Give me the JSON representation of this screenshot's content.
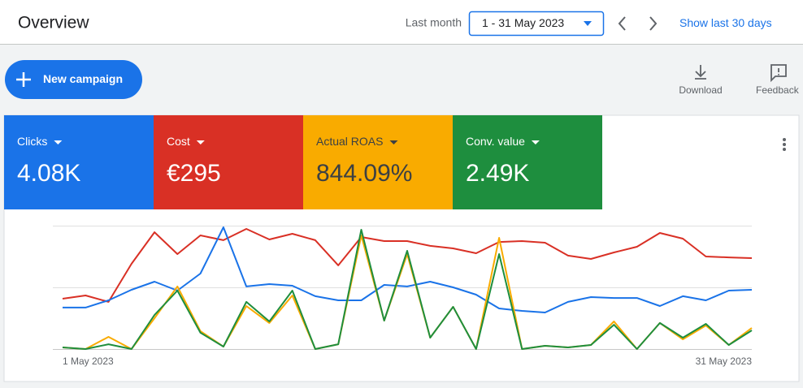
{
  "header": {
    "title": "Overview",
    "period_label": "Last month",
    "date_range": "1 - 31 May 2023",
    "show_last": "Show last 30 days"
  },
  "toolbar": {
    "new_campaign": "New campaign",
    "download": "Download",
    "feedback": "Feedback"
  },
  "chart_data": {
    "type": "line",
    "x": [
      "1 May 2023",
      null,
      null,
      null,
      null,
      null,
      null,
      null,
      null,
      null,
      null,
      null,
      null,
      null,
      null,
      null,
      null,
      null,
      null,
      null,
      null,
      null,
      null,
      null,
      null,
      null,
      null,
      null,
      null,
      null,
      "31 May 2023"
    ],
    "ylim": [
      0,
      100
    ],
    "series": [
      {
        "name": "Clicks",
        "total": "4.08K",
        "color": "#1a73e8",
        "text_color": "#ffffff",
        "values": [
          33.6,
          33.6,
          39.5,
          48.0,
          54.6,
          47.4,
          61.2,
          98.7,
          50.7,
          52.6,
          51.3,
          42.8,
          39.5,
          39.5,
          52.0,
          50.7,
          54.6,
          50.0,
          44.1,
          32.9,
          30.9,
          29.6,
          38.2,
          42.1,
          41.4,
          41.4,
          34.9,
          42.8,
          39.5,
          47.4,
          48.0
        ]
      },
      {
        "name": "Cost",
        "total": "€295",
        "color": "#d93025",
        "text_color": "#ffffff",
        "values": [
          40.8,
          43.4,
          38.2,
          69.1,
          94.7,
          77.0,
          92.1,
          88.2,
          97.4,
          88.8,
          93.4,
          88.2,
          67.8,
          90.8,
          87.5,
          87.5,
          83.6,
          81.6,
          77.6,
          86.8,
          87.5,
          86.2,
          75.7,
          73.0,
          78.3,
          82.9,
          94.1,
          89.5,
          75.0,
          74.3,
          73.7
        ]
      },
      {
        "name": "Actual ROAS",
        "total": "844.09%",
        "color": "#f9ab00",
        "text_color": "#3c4043",
        "values": [
          1.3,
          0,
          9.9,
          0,
          25.0,
          50.7,
          14.5,
          2.0,
          34.9,
          21.1,
          43.4,
          0,
          3.9,
          92.1,
          23.0,
          77.0,
          9.2,
          34.2,
          0,
          90.1,
          0,
          2.6,
          1.3,
          3.3,
          22.4,
          0,
          21.1,
          7.9,
          19.1,
          3.3,
          17.1
        ]
      },
      {
        "name": "Conv. value",
        "total": "2.49K",
        "color": "#1e8e3e",
        "text_color": "#ffffff",
        "values": [
          1.3,
          0,
          3.9,
          0,
          27.6,
          47.4,
          13.2,
          2.0,
          38.2,
          22.4,
          47.4,
          0,
          3.9,
          96.7,
          23.0,
          79.6,
          9.2,
          34.2,
          0,
          77.0,
          0,
          2.6,
          1.3,
          3.3,
          19.7,
          0,
          21.1,
          9.2,
          20.4,
          3.3,
          15.1
        ]
      }
    ]
  }
}
